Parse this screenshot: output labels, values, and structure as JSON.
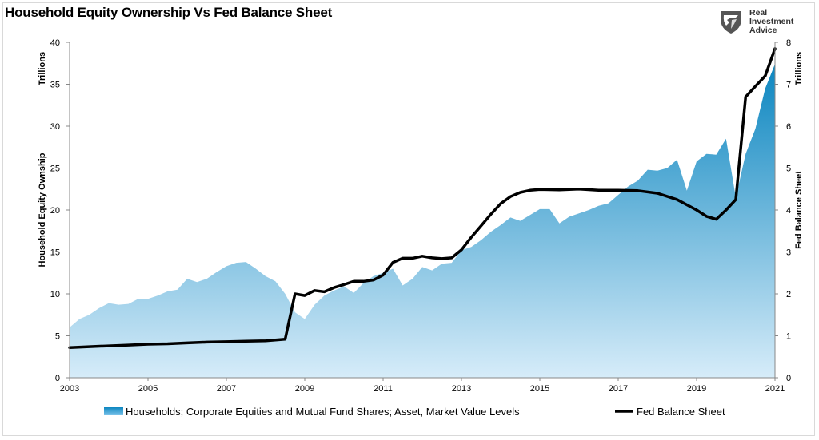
{
  "title": "Household Equity Ownership Vs Fed Balance Sheet",
  "logo": {
    "line1": "Real",
    "line2": "Investment",
    "line3": "Advice",
    "icon": "eagle-shield-icon"
  },
  "colors": {
    "area_top": "#0c86c0",
    "area_bottom": "#d6ecf9",
    "line": "#000000"
  },
  "chart_data": {
    "type": "area",
    "xlim": [
      2003,
      2021
    ],
    "x_ticks": [
      "2003",
      "2005",
      "2007",
      "2009",
      "2011",
      "2013",
      "2015",
      "2017",
      "2019",
      "2021"
    ],
    "y_left": {
      "ticks": [
        "0",
        "5",
        "10",
        "15",
        "20",
        "25",
        "30",
        "35",
        "40"
      ],
      "range": [
        0,
        40
      ],
      "label_top": "Trillions",
      "label_main": "Household Equity Ownship"
    },
    "y_right": {
      "ticks": [
        "0",
        "1",
        "2",
        "3",
        "4",
        "5",
        "6",
        "7",
        "8"
      ],
      "range": [
        0,
        8
      ],
      "label_top": "Trillions",
      "label_main": "Fed Balance Sheet"
    },
    "grid": false,
    "legend_position": "bottom",
    "series": [
      {
        "name": "Households; Corporate Equities and Mutual Fund Shares; Asset, Market Value Levels",
        "type": "area",
        "axis": "left",
        "points": [
          [
            2003.0,
            6.0
          ],
          [
            2003.25,
            7.0
          ],
          [
            2003.5,
            7.5
          ],
          [
            2003.75,
            8.3
          ],
          [
            2004.0,
            8.9
          ],
          [
            2004.25,
            8.7
          ],
          [
            2004.5,
            8.8
          ],
          [
            2004.75,
            9.4
          ],
          [
            2005.0,
            9.4
          ],
          [
            2005.25,
            9.8
          ],
          [
            2005.5,
            10.3
          ],
          [
            2005.75,
            10.5
          ],
          [
            2006.0,
            11.8
          ],
          [
            2006.25,
            11.4
          ],
          [
            2006.5,
            11.8
          ],
          [
            2006.75,
            12.6
          ],
          [
            2007.0,
            13.3
          ],
          [
            2007.25,
            13.7
          ],
          [
            2007.5,
            13.8
          ],
          [
            2007.75,
            13.0
          ],
          [
            2008.0,
            12.1
          ],
          [
            2008.25,
            11.5
          ],
          [
            2008.5,
            10.0
          ],
          [
            2008.75,
            7.8
          ],
          [
            2009.0,
            7.0
          ],
          [
            2009.25,
            8.7
          ],
          [
            2009.5,
            9.8
          ],
          [
            2009.75,
            10.4
          ],
          [
            2010.0,
            10.9
          ],
          [
            2010.25,
            10.1
          ],
          [
            2010.5,
            11.3
          ],
          [
            2010.75,
            12.1
          ],
          [
            2011.0,
            12.5
          ],
          [
            2011.25,
            13.0
          ],
          [
            2011.5,
            11.0
          ],
          [
            2011.75,
            11.8
          ],
          [
            2012.0,
            13.2
          ],
          [
            2012.25,
            12.8
          ],
          [
            2012.5,
            13.6
          ],
          [
            2012.75,
            13.7
          ],
          [
            2013.0,
            15.2
          ],
          [
            2013.25,
            15.6
          ],
          [
            2013.5,
            16.4
          ],
          [
            2013.75,
            17.4
          ],
          [
            2014.0,
            18.2
          ],
          [
            2014.25,
            19.1
          ],
          [
            2014.5,
            18.7
          ],
          [
            2014.75,
            19.4
          ],
          [
            2015.0,
            20.1
          ],
          [
            2015.25,
            20.1
          ],
          [
            2015.5,
            18.4
          ],
          [
            2015.75,
            19.2
          ],
          [
            2016.0,
            19.6
          ],
          [
            2016.25,
            20.0
          ],
          [
            2016.5,
            20.5
          ],
          [
            2016.75,
            20.8
          ],
          [
            2017.0,
            21.8
          ],
          [
            2017.25,
            22.8
          ],
          [
            2017.5,
            23.5
          ],
          [
            2017.75,
            24.8
          ],
          [
            2018.0,
            24.7
          ],
          [
            2018.25,
            25.0
          ],
          [
            2018.5,
            26.0
          ],
          [
            2018.75,
            22.3
          ],
          [
            2019.0,
            25.8
          ],
          [
            2019.25,
            26.7
          ],
          [
            2019.5,
            26.6
          ],
          [
            2019.75,
            28.5
          ],
          [
            2020.0,
            21.5
          ],
          [
            2020.25,
            26.7
          ],
          [
            2020.5,
            29.7
          ],
          [
            2020.75,
            34.5
          ],
          [
            2021.0,
            37.4
          ]
        ]
      },
      {
        "name": "Fed Balance Sheet",
        "type": "line",
        "axis": "right",
        "points": [
          [
            2003.0,
            0.72
          ],
          [
            2003.5,
            0.74
          ],
          [
            2004.0,
            0.76
          ],
          [
            2004.5,
            0.78
          ],
          [
            2005.0,
            0.8
          ],
          [
            2005.5,
            0.81
          ],
          [
            2006.0,
            0.83
          ],
          [
            2006.5,
            0.85
          ],
          [
            2007.0,
            0.86
          ],
          [
            2007.5,
            0.87
          ],
          [
            2008.0,
            0.88
          ],
          [
            2008.5,
            0.92
          ],
          [
            2008.75,
            2.0
          ],
          [
            2009.0,
            1.96
          ],
          [
            2009.25,
            2.08
          ],
          [
            2009.5,
            2.05
          ],
          [
            2009.75,
            2.15
          ],
          [
            2010.0,
            2.22
          ],
          [
            2010.25,
            2.3
          ],
          [
            2010.5,
            2.3
          ],
          [
            2010.75,
            2.33
          ],
          [
            2011.0,
            2.45
          ],
          [
            2011.25,
            2.75
          ],
          [
            2011.5,
            2.85
          ],
          [
            2011.75,
            2.85
          ],
          [
            2012.0,
            2.9
          ],
          [
            2012.25,
            2.86
          ],
          [
            2012.5,
            2.84
          ],
          [
            2012.75,
            2.86
          ],
          [
            2013.0,
            3.05
          ],
          [
            2013.25,
            3.35
          ],
          [
            2013.5,
            3.62
          ],
          [
            2013.75,
            3.9
          ],
          [
            2014.0,
            4.15
          ],
          [
            2014.25,
            4.32
          ],
          [
            2014.5,
            4.42
          ],
          [
            2014.75,
            4.47
          ],
          [
            2015.0,
            4.49
          ],
          [
            2015.5,
            4.48
          ],
          [
            2016.0,
            4.5
          ],
          [
            2016.5,
            4.47
          ],
          [
            2017.0,
            4.47
          ],
          [
            2017.5,
            4.46
          ],
          [
            2018.0,
            4.4
          ],
          [
            2018.5,
            4.25
          ],
          [
            2019.0,
            4.0
          ],
          [
            2019.25,
            3.85
          ],
          [
            2019.5,
            3.78
          ],
          [
            2019.75,
            4.0
          ],
          [
            2020.0,
            4.25
          ],
          [
            2020.25,
            6.7
          ],
          [
            2020.5,
            6.95
          ],
          [
            2020.75,
            7.2
          ],
          [
            2021.0,
            7.85
          ]
        ]
      }
    ]
  }
}
